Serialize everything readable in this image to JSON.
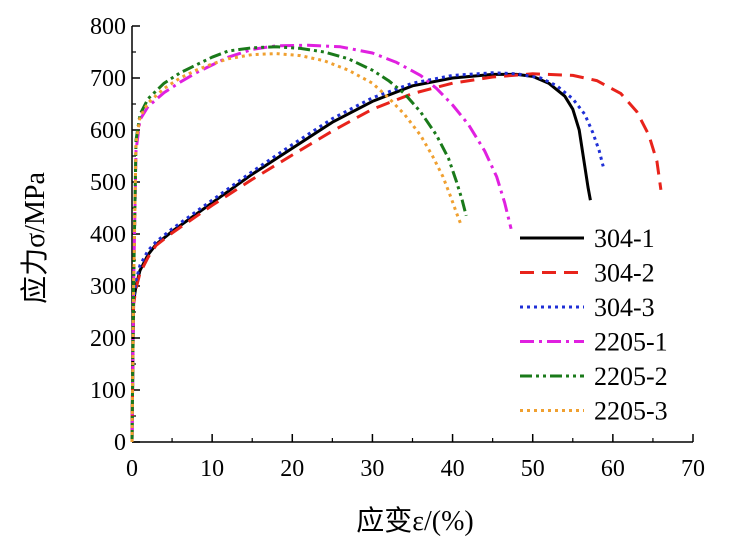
{
  "chart_data": {
    "type": "line",
    "title": "",
    "xlabel": "应变ε/(%)",
    "ylabel": "应力σ/MPa",
    "xlim": [
      0,
      70
    ],
    "ylim": [
      0,
      800
    ],
    "xticks": [
      "0",
      "10",
      "20",
      "30",
      "40",
      "50",
      "60",
      "70"
    ],
    "yticks": [
      "0",
      "100",
      "200",
      "300",
      "400",
      "500",
      "600",
      "700",
      "800"
    ],
    "legend_position": "bottom-right",
    "series": [
      {
        "name": "304-1",
        "color": "#000000",
        "style": "solid",
        "points": [
          [
            0,
            0
          ],
          [
            0.1,
            150
          ],
          [
            0.2,
            270
          ],
          [
            0.5,
            300
          ],
          [
            1,
            330
          ],
          [
            2,
            360
          ],
          [
            3,
            380
          ],
          [
            5,
            405
          ],
          [
            10,
            460
          ],
          [
            15,
            515
          ],
          [
            20,
            565
          ],
          [
            25,
            615
          ],
          [
            30,
            655
          ],
          [
            35,
            685
          ],
          [
            40,
            700
          ],
          [
            45,
            707
          ],
          [
            48,
            707
          ],
          [
            50,
            703
          ],
          [
            52,
            690
          ],
          [
            54,
            665
          ],
          [
            55,
            640
          ],
          [
            55.8,
            600
          ],
          [
            56.4,
            540
          ],
          [
            56.9,
            490
          ],
          [
            57.2,
            465
          ]
        ]
      },
      {
        "name": "304-2",
        "color": "#e8231b",
        "style": "dashed",
        "points": [
          [
            0,
            0
          ],
          [
            0.1,
            150
          ],
          [
            0.2,
            265
          ],
          [
            0.5,
            295
          ],
          [
            1,
            325
          ],
          [
            2,
            355
          ],
          [
            3,
            378
          ],
          [
            5,
            402
          ],
          [
            10,
            455
          ],
          [
            15,
            505
          ],
          [
            20,
            552
          ],
          [
            25,
            598
          ],
          [
            30,
            640
          ],
          [
            35,
            670
          ],
          [
            40,
            690
          ],
          [
            45,
            702
          ],
          [
            50,
            708
          ],
          [
            55,
            705
          ],
          [
            58,
            695
          ],
          [
            61,
            670
          ],
          [
            63,
            635
          ],
          [
            64.5,
            590
          ],
          [
            65.5,
            540
          ],
          [
            66,
            485
          ]
        ]
      },
      {
        "name": "304-3",
        "color": "#1f2fd6",
        "style": "dotted",
        "points": [
          [
            0,
            0
          ],
          [
            0.1,
            150
          ],
          [
            0.2,
            275
          ],
          [
            0.5,
            310
          ],
          [
            1,
            340
          ],
          [
            2,
            368
          ],
          [
            3,
            385
          ],
          [
            5,
            410
          ],
          [
            10,
            465
          ],
          [
            15,
            520
          ],
          [
            20,
            572
          ],
          [
            25,
            622
          ],
          [
            30,
            662
          ],
          [
            35,
            690
          ],
          [
            40,
            705
          ],
          [
            45,
            710
          ],
          [
            48,
            708
          ],
          [
            51,
            700
          ],
          [
            53,
            685
          ],
          [
            55,
            660
          ],
          [
            56.5,
            630
          ],
          [
            57.5,
            595
          ],
          [
            58.3,
            560
          ],
          [
            58.8,
            530
          ]
        ]
      },
      {
        "name": "2205-1",
        "color": "#e020e0",
        "style": "dash-dot",
        "points": [
          [
            0,
            0
          ],
          [
            0.2,
            300
          ],
          [
            0.5,
            560
          ],
          [
            1,
            620
          ],
          [
            2,
            645
          ],
          [
            4,
            672
          ],
          [
            6,
            692
          ],
          [
            8,
            710
          ],
          [
            10,
            725
          ],
          [
            12,
            740
          ],
          [
            15,
            755
          ],
          [
            18,
            762
          ],
          [
            22,
            763
          ],
          [
            26,
            760
          ],
          [
            30,
            748
          ],
          [
            33,
            730
          ],
          [
            36,
            705
          ],
          [
            38,
            680
          ],
          [
            40,
            648
          ],
          [
            42,
            610
          ],
          [
            44,
            560
          ],
          [
            45.5,
            510
          ],
          [
            46.5,
            460
          ],
          [
            47.3,
            410
          ]
        ]
      },
      {
        "name": "2205-2",
        "color": "#1a7a1a",
        "style": "dash-dot-dot",
        "points": [
          [
            0,
            0
          ],
          [
            0.2,
            300
          ],
          [
            0.5,
            580
          ],
          [
            1,
            630
          ],
          [
            2,
            660
          ],
          [
            4,
            690
          ],
          [
            6,
            710
          ],
          [
            8,
            725
          ],
          [
            10,
            740
          ],
          [
            12,
            752
          ],
          [
            15,
            758
          ],
          [
            18,
            760
          ],
          [
            21,
            757
          ],
          [
            24,
            750
          ],
          [
            27,
            737
          ],
          [
            30,
            715
          ],
          [
            32,
            695
          ],
          [
            34,
            670
          ],
          [
            36,
            635
          ],
          [
            38,
            590
          ],
          [
            39.5,
            545
          ],
          [
            40.5,
            500
          ],
          [
            41.2,
            465
          ],
          [
            41.7,
            435
          ]
        ]
      },
      {
        "name": "2205-3",
        "color": "#f0a030",
        "style": "dotted",
        "points": [
          [
            0,
            0
          ],
          [
            0.2,
            300
          ],
          [
            0.5,
            575
          ],
          [
            1,
            625
          ],
          [
            2,
            652
          ],
          [
            4,
            680
          ],
          [
            6,
            700
          ],
          [
            8,
            715
          ],
          [
            10,
            727
          ],
          [
            12,
            737
          ],
          [
            15,
            745
          ],
          [
            18,
            747
          ],
          [
            21,
            743
          ],
          [
            24,
            733
          ],
          [
            27,
            715
          ],
          [
            30,
            690
          ],
          [
            32,
            662
          ],
          [
            34,
            630
          ],
          [
            36,
            590
          ],
          [
            37.5,
            550
          ],
          [
            38.8,
            510
          ],
          [
            39.8,
            470
          ],
          [
            40.5,
            440
          ],
          [
            41,
            420
          ]
        ]
      }
    ]
  }
}
